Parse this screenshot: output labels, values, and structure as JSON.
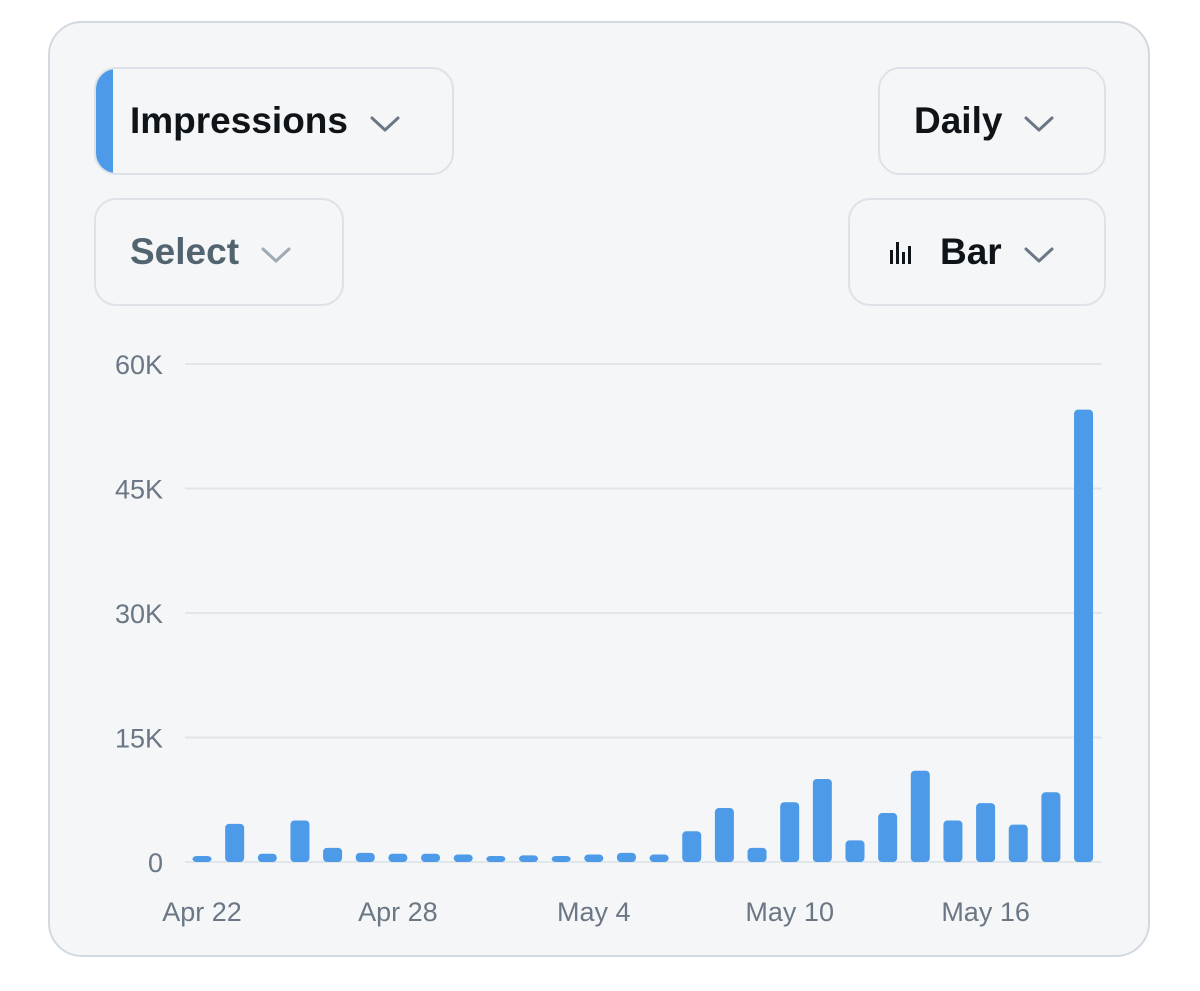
{
  "controls": {
    "metric_label": "Impressions",
    "period_label": "Daily",
    "compare_label": "Select",
    "chart_type_label": "Bar"
  },
  "colors": {
    "bar": "#4c9ae8",
    "accent": "#4c9ae8",
    "grid": "#e1e6eb"
  },
  "chart_data": {
    "type": "bar",
    "title": "",
    "xlabel": "",
    "ylabel": "",
    "ylim": [
      0,
      60000
    ],
    "yticks": [
      "0",
      "15K",
      "30K",
      "45K",
      "60K"
    ],
    "ytick_values": [
      0,
      15000,
      30000,
      45000,
      60000
    ],
    "xtick_labels": [
      "Apr 22",
      "Apr 28",
      "May 4",
      "May 10",
      "May 16"
    ],
    "xtick_indices": [
      0,
      6,
      12,
      18,
      24
    ],
    "categories": [
      "Apr 22",
      "Apr 23",
      "Apr 24",
      "Apr 25",
      "Apr 26",
      "Apr 27",
      "Apr 28",
      "Apr 29",
      "Apr 30",
      "May 1",
      "May 2",
      "May 3",
      "May 4",
      "May 5",
      "May 6",
      "May 7",
      "May 8",
      "May 9",
      "May 10",
      "May 11",
      "May 12",
      "May 13",
      "May 14",
      "May 15",
      "May 16",
      "May 17",
      "May 18",
      "May 19"
    ],
    "series": [
      {
        "values": [
          700,
          4600,
          1000,
          5000,
          1700,
          1100,
          1000,
          1000,
          900,
          500,
          800,
          400,
          900,
          1100,
          900,
          3700,
          6500,
          1700,
          7200,
          10000,
          2600,
          5900,
          11000,
          5000,
          7100,
          4500,
          8400,
          54500
        ]
      }
    ],
    "grid": true,
    "legend": "none"
  }
}
